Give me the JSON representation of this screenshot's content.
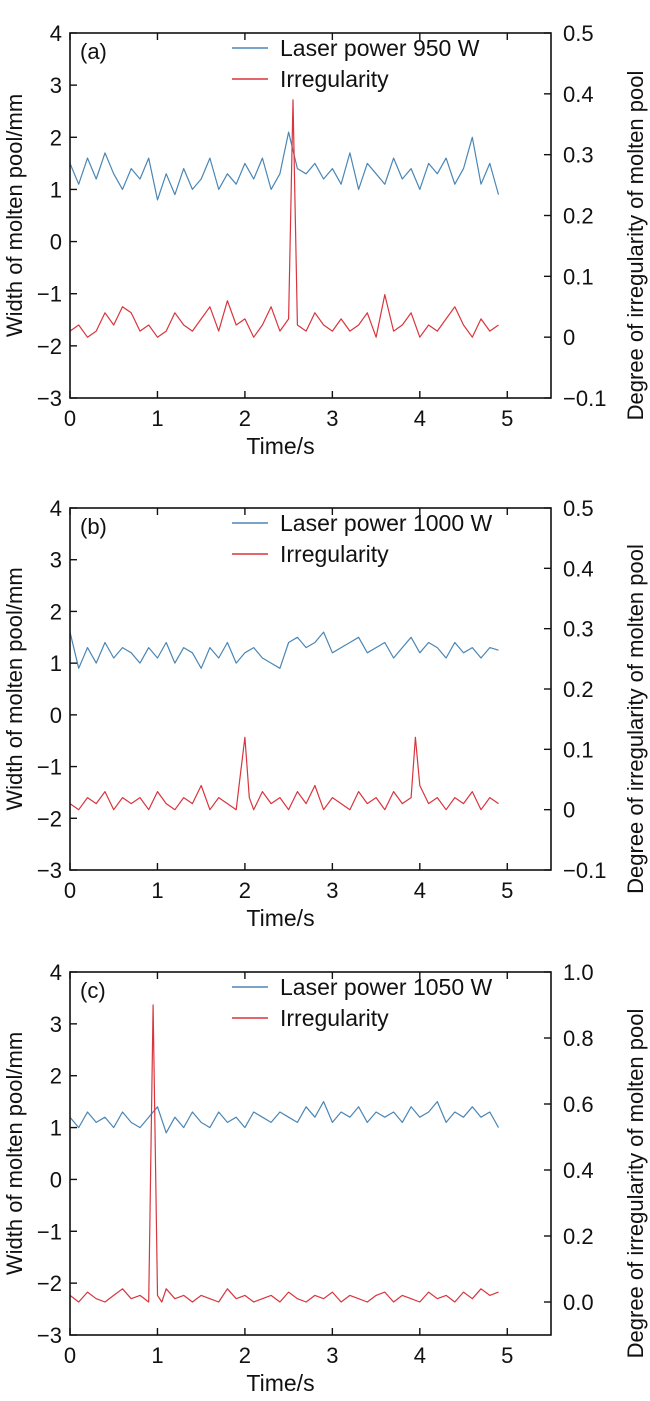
{
  "figure": {
    "colors": {
      "width_series": "#4a86b5",
      "irregularity_series": "#d8353d",
      "axis": "#111111"
    }
  },
  "chart_data": [
    {
      "type": "line",
      "panel_label": "(a)",
      "xlabel": "Time/s",
      "ylabel": "Width of molten pool/mm",
      "y2label": "Degree of irregularity of molten pool",
      "xlim": [
        0,
        5.5
      ],
      "ylim": [
        -3,
        4
      ],
      "y2lim": [
        -0.1,
        0.5
      ],
      "xticks": [
        0,
        1,
        2,
        3,
        4,
        5
      ],
      "yticks": [
        -3,
        -2,
        -1,
        0,
        1,
        2,
        3,
        4
      ],
      "y2ticks": [
        -0.1,
        0,
        0.1,
        0.2,
        0.3,
        0.4,
        0.5
      ],
      "legend_position": "top-right",
      "grid": false,
      "series": [
        {
          "name": "Laser power 950 W",
          "axis": "left",
          "color": "#4a86b5",
          "x": [
            0.0,
            0.1,
            0.2,
            0.3,
            0.4,
            0.5,
            0.6,
            0.7,
            0.8,
            0.9,
            1.0,
            1.1,
            1.2,
            1.3,
            1.4,
            1.5,
            1.6,
            1.7,
            1.8,
            1.9,
            2.0,
            2.1,
            2.2,
            2.3,
            2.4,
            2.5,
            2.6,
            2.7,
            2.8,
            2.9,
            3.0,
            3.1,
            3.2,
            3.3,
            3.4,
            3.5,
            3.6,
            3.7,
            3.8,
            3.9,
            4.0,
            4.1,
            4.2,
            4.3,
            4.4,
            4.5,
            4.6,
            4.7,
            4.8,
            4.9
          ],
          "y": [
            1.5,
            1.1,
            1.6,
            1.2,
            1.7,
            1.3,
            1.0,
            1.4,
            1.2,
            1.6,
            0.8,
            1.3,
            0.9,
            1.4,
            1.0,
            1.2,
            1.6,
            1.0,
            1.3,
            1.1,
            1.5,
            1.2,
            1.6,
            1.0,
            1.3,
            2.1,
            1.4,
            1.3,
            1.5,
            1.2,
            1.4,
            1.1,
            1.7,
            1.0,
            1.5,
            1.3,
            1.1,
            1.6,
            1.2,
            1.4,
            1.0,
            1.5,
            1.3,
            1.6,
            1.1,
            1.4,
            2.0,
            1.1,
            1.5,
            0.9
          ]
        },
        {
          "name": "Irregularity",
          "axis": "right",
          "color": "#d8353d",
          "x": [
            0.0,
            0.1,
            0.2,
            0.3,
            0.4,
            0.5,
            0.6,
            0.7,
            0.8,
            0.9,
            1.0,
            1.1,
            1.2,
            1.3,
            1.4,
            1.5,
            1.6,
            1.7,
            1.8,
            1.9,
            2.0,
            2.1,
            2.2,
            2.3,
            2.4,
            2.5,
            2.55,
            2.6,
            2.7,
            2.8,
            2.9,
            3.0,
            3.1,
            3.2,
            3.3,
            3.4,
            3.5,
            3.6,
            3.7,
            3.8,
            3.9,
            4.0,
            4.1,
            4.2,
            4.3,
            4.4,
            4.5,
            4.6,
            4.7,
            4.8,
            4.9
          ],
          "y": [
            0.01,
            0.02,
            0.0,
            0.01,
            0.04,
            0.02,
            0.05,
            0.04,
            0.01,
            0.02,
            0.0,
            0.01,
            0.04,
            0.02,
            0.01,
            0.03,
            0.05,
            0.01,
            0.06,
            0.02,
            0.03,
            0.0,
            0.02,
            0.05,
            0.01,
            0.03,
            0.39,
            0.02,
            0.01,
            0.04,
            0.02,
            0.01,
            0.03,
            0.01,
            0.02,
            0.04,
            0.0,
            0.07,
            0.01,
            0.02,
            0.04,
            0.0,
            0.02,
            0.01,
            0.03,
            0.05,
            0.02,
            0.0,
            0.03,
            0.01,
            0.02
          ]
        }
      ]
    },
    {
      "type": "line",
      "panel_label": "(b)",
      "xlabel": "Time/s",
      "ylabel": "Width of molten pool/mm",
      "y2label": "Degree of irregularity of molten pool",
      "xlim": [
        0,
        5.5
      ],
      "ylim": [
        -3,
        4
      ],
      "y2lim": [
        -0.1,
        0.5
      ],
      "xticks": [
        0,
        1,
        2,
        3,
        4,
        5
      ],
      "yticks": [
        -3,
        -2,
        -1,
        0,
        1,
        2,
        3,
        4
      ],
      "y2ticks": [
        -0.1,
        0,
        0.1,
        0.2,
        0.3,
        0.4,
        0.5
      ],
      "legend_position": "top-right",
      "grid": false,
      "series": [
        {
          "name": "Laser power 1000 W",
          "axis": "left",
          "color": "#4a86b5",
          "x": [
            0.0,
            0.1,
            0.2,
            0.3,
            0.4,
            0.5,
            0.6,
            0.7,
            0.8,
            0.9,
            1.0,
            1.1,
            1.2,
            1.3,
            1.4,
            1.5,
            1.6,
            1.7,
            1.8,
            1.9,
            2.0,
            2.1,
            2.2,
            2.3,
            2.4,
            2.5,
            2.6,
            2.7,
            2.8,
            2.9,
            3.0,
            3.1,
            3.2,
            3.3,
            3.4,
            3.5,
            3.6,
            3.7,
            3.8,
            3.9,
            4.0,
            4.1,
            4.2,
            4.3,
            4.4,
            4.5,
            4.6,
            4.7,
            4.8,
            4.9
          ],
          "y": [
            1.6,
            0.9,
            1.3,
            1.0,
            1.4,
            1.1,
            1.3,
            1.2,
            1.0,
            1.3,
            1.1,
            1.4,
            1.0,
            1.3,
            1.2,
            0.9,
            1.3,
            1.1,
            1.4,
            1.0,
            1.2,
            1.3,
            1.1,
            1.0,
            0.9,
            1.4,
            1.5,
            1.3,
            1.4,
            1.6,
            1.2,
            1.3,
            1.4,
            1.5,
            1.2,
            1.3,
            1.4,
            1.1,
            1.3,
            1.5,
            1.2,
            1.4,
            1.3,
            1.1,
            1.4,
            1.2,
            1.3,
            1.1,
            1.3,
            1.25
          ]
        },
        {
          "name": "Irregularity",
          "axis": "right",
          "color": "#d8353d",
          "x": [
            0.0,
            0.1,
            0.2,
            0.3,
            0.4,
            0.5,
            0.6,
            0.7,
            0.8,
            0.9,
            1.0,
            1.1,
            1.2,
            1.3,
            1.4,
            1.5,
            1.6,
            1.7,
            1.8,
            1.9,
            1.95,
            2.0,
            2.05,
            2.1,
            2.2,
            2.3,
            2.4,
            2.5,
            2.6,
            2.7,
            2.8,
            2.9,
            3.0,
            3.1,
            3.2,
            3.3,
            3.4,
            3.5,
            3.6,
            3.7,
            3.8,
            3.9,
            3.95,
            4.0,
            4.1,
            4.2,
            4.3,
            4.4,
            4.5,
            4.6,
            4.7,
            4.8,
            4.9
          ],
          "y": [
            0.01,
            0.0,
            0.02,
            0.01,
            0.03,
            0.0,
            0.02,
            0.01,
            0.02,
            0.0,
            0.03,
            0.01,
            0.0,
            0.02,
            0.01,
            0.04,
            0.0,
            0.02,
            0.01,
            0.0,
            0.06,
            0.12,
            0.02,
            0.0,
            0.03,
            0.01,
            0.02,
            0.0,
            0.03,
            0.01,
            0.04,
            0.0,
            0.02,
            0.01,
            0.0,
            0.03,
            0.01,
            0.02,
            0.0,
            0.03,
            0.01,
            0.02,
            0.12,
            0.04,
            0.01,
            0.02,
            0.0,
            0.02,
            0.01,
            0.03,
            0.0,
            0.02,
            0.01
          ]
        }
      ]
    },
    {
      "type": "line",
      "panel_label": "(c)",
      "xlabel": "Time/s",
      "ylabel": "Width of molten pool/mm",
      "y2label": "Degree of irregularity of molten pool",
      "xlim": [
        0,
        5.5
      ],
      "ylim": [
        -3,
        4
      ],
      "y2lim": [
        -0.1,
        1.0
      ],
      "xticks": [
        0,
        1,
        2,
        3,
        4,
        5
      ],
      "yticks": [
        -3,
        -2,
        -1,
        0,
        1,
        2,
        3,
        4
      ],
      "y2ticks": [
        0.0,
        0.2,
        0.4,
        0.6,
        0.8,
        1.0
      ],
      "legend_position": "top-right",
      "grid": false,
      "series": [
        {
          "name": "Laser power 1050 W",
          "axis": "left",
          "color": "#4a86b5",
          "x": [
            0.0,
            0.1,
            0.2,
            0.3,
            0.4,
            0.5,
            0.6,
            0.7,
            0.8,
            0.9,
            1.0,
            1.1,
            1.2,
            1.3,
            1.4,
            1.5,
            1.6,
            1.7,
            1.8,
            1.9,
            2.0,
            2.1,
            2.2,
            2.3,
            2.4,
            2.5,
            2.6,
            2.7,
            2.8,
            2.9,
            3.0,
            3.1,
            3.2,
            3.3,
            3.4,
            3.5,
            3.6,
            3.7,
            3.8,
            3.9,
            4.0,
            4.1,
            4.2,
            4.3,
            4.4,
            4.5,
            4.6,
            4.7,
            4.8,
            4.9
          ],
          "y": [
            1.2,
            1.0,
            1.3,
            1.1,
            1.2,
            1.0,
            1.3,
            1.1,
            1.0,
            1.2,
            1.4,
            0.9,
            1.2,
            1.0,
            1.3,
            1.1,
            1.0,
            1.3,
            1.1,
            1.2,
            1.0,
            1.3,
            1.2,
            1.1,
            1.3,
            1.2,
            1.1,
            1.4,
            1.2,
            1.5,
            1.1,
            1.3,
            1.2,
            1.4,
            1.1,
            1.3,
            1.2,
            1.3,
            1.1,
            1.4,
            1.2,
            1.3,
            1.5,
            1.1,
            1.3,
            1.2,
            1.4,
            1.2,
            1.3,
            1.0
          ]
        },
        {
          "name": "Irregularity",
          "axis": "right",
          "color": "#d8353d",
          "x": [
            0.0,
            0.1,
            0.2,
            0.3,
            0.4,
            0.5,
            0.6,
            0.7,
            0.8,
            0.9,
            0.95,
            1.0,
            1.05,
            1.1,
            1.2,
            1.3,
            1.4,
            1.5,
            1.6,
            1.7,
            1.8,
            1.9,
            2.0,
            2.1,
            2.2,
            2.3,
            2.4,
            2.5,
            2.6,
            2.7,
            2.8,
            2.9,
            3.0,
            3.1,
            3.2,
            3.3,
            3.4,
            3.5,
            3.6,
            3.7,
            3.8,
            3.9,
            4.0,
            4.1,
            4.2,
            4.3,
            4.4,
            4.5,
            4.6,
            4.7,
            4.8,
            4.9
          ],
          "y": [
            0.02,
            0.0,
            0.03,
            0.01,
            0.0,
            0.02,
            0.04,
            0.01,
            0.02,
            0.0,
            0.9,
            0.02,
            0.0,
            0.04,
            0.01,
            0.02,
            0.0,
            0.02,
            0.01,
            0.0,
            0.04,
            0.01,
            0.02,
            0.0,
            0.01,
            0.02,
            0.0,
            0.03,
            0.01,
            0.0,
            0.02,
            0.01,
            0.03,
            0.0,
            0.02,
            0.01,
            0.0,
            0.02,
            0.03,
            0.0,
            0.02,
            0.01,
            0.0,
            0.03,
            0.01,
            0.02,
            0.0,
            0.03,
            0.01,
            0.04,
            0.02,
            0.03
          ]
        }
      ]
    }
  ]
}
